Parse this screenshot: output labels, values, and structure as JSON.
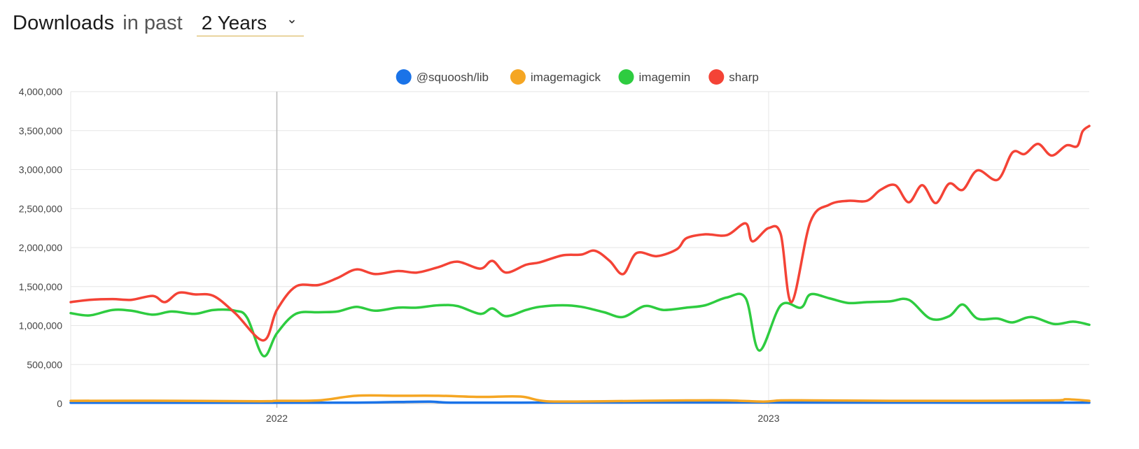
{
  "header": {
    "title": "Downloads",
    "subtitle": "in past",
    "range_value": "2 Years"
  },
  "chart_data": {
    "type": "line",
    "grid": true,
    "legend_position": "top",
    "xlim": [
      "2021-08-01",
      "2023-08-27"
    ],
    "ylim": [
      0,
      4000000
    ],
    "y_ticks": [
      0,
      500000,
      1000000,
      1500000,
      2000000,
      2500000,
      3000000,
      3500000,
      4000000
    ],
    "y_tick_labels": [
      "0",
      "500,000",
      "1,000,000",
      "1,500,000",
      "2,000,000",
      "2,500,000",
      "3,000,000",
      "3,500,000",
      "4,000,000"
    ],
    "x_ticks": [
      {
        "date": "2022-01-01",
        "label": "2022"
      },
      {
        "date": "2023-01-01",
        "label": "2023"
      }
    ],
    "highlight_date": "2022-01-01",
    "series": [
      {
        "name": "@squoosh/lib",
        "color": "#1a73e8",
        "points": [
          [
            "2021-08-01",
            10000
          ],
          [
            "2021-10-01",
            10000
          ],
          [
            "2022-01-01",
            10000
          ],
          [
            "2022-03-01",
            11000
          ],
          [
            "2022-04-01",
            20000
          ],
          [
            "2022-04-25",
            25000
          ],
          [
            "2022-05-10",
            12000
          ],
          [
            "2022-07-01",
            12000
          ],
          [
            "2022-10-01",
            14000
          ],
          [
            "2023-01-01",
            14000
          ],
          [
            "2023-04-01",
            13000
          ],
          [
            "2023-06-01",
            12000
          ],
          [
            "2023-08-27",
            12000
          ]
        ]
      },
      {
        "name": "imagemagick",
        "color": "#f5a623",
        "points": [
          [
            "2021-08-01",
            35000
          ],
          [
            "2021-10-01",
            36000
          ],
          [
            "2021-12-20",
            30000
          ],
          [
            "2022-01-01",
            35000
          ],
          [
            "2022-02-01",
            40000
          ],
          [
            "2022-03-01",
            100000
          ],
          [
            "2022-04-01",
            100000
          ],
          [
            "2022-05-01",
            100000
          ],
          [
            "2022-06-01",
            85000
          ],
          [
            "2022-07-01",
            90000
          ],
          [
            "2022-07-20",
            30000
          ],
          [
            "2022-09-01",
            30000
          ],
          [
            "2022-11-01",
            40000
          ],
          [
            "2022-12-01",
            40000
          ],
          [
            "2022-12-28",
            25000
          ],
          [
            "2023-01-10",
            40000
          ],
          [
            "2023-02-01",
            40000
          ],
          [
            "2023-04-01",
            35000
          ],
          [
            "2023-06-01",
            35000
          ],
          [
            "2023-08-01",
            40000
          ],
          [
            "2023-08-10",
            55000
          ],
          [
            "2023-08-27",
            35000
          ]
        ]
      },
      {
        "name": "imagemin",
        "color": "#2ecc40",
        "points": [
          [
            "2021-08-01",
            1160000
          ],
          [
            "2021-08-15",
            1130000
          ],
          [
            "2021-09-01",
            1200000
          ],
          [
            "2021-09-15",
            1190000
          ],
          [
            "2021-10-01",
            1140000
          ],
          [
            "2021-10-15",
            1180000
          ],
          [
            "2021-11-01",
            1150000
          ],
          [
            "2021-11-15",
            1200000
          ],
          [
            "2021-12-01",
            1190000
          ],
          [
            "2021-12-10",
            1100000
          ],
          [
            "2021-12-22",
            610000
          ],
          [
            "2022-01-01",
            900000
          ],
          [
            "2022-01-15",
            1150000
          ],
          [
            "2022-02-01",
            1170000
          ],
          [
            "2022-02-15",
            1180000
          ],
          [
            "2022-03-01",
            1240000
          ],
          [
            "2022-03-15",
            1190000
          ],
          [
            "2022-04-01",
            1230000
          ],
          [
            "2022-04-15",
            1230000
          ],
          [
            "2022-05-01",
            1260000
          ],
          [
            "2022-05-15",
            1250000
          ],
          [
            "2022-06-01",
            1150000
          ],
          [
            "2022-06-10",
            1220000
          ],
          [
            "2022-06-20",
            1120000
          ],
          [
            "2022-07-05",
            1200000
          ],
          [
            "2022-07-15",
            1240000
          ],
          [
            "2022-08-01",
            1260000
          ],
          [
            "2022-08-15",
            1240000
          ],
          [
            "2022-09-01",
            1170000
          ],
          [
            "2022-09-15",
            1110000
          ],
          [
            "2022-10-01",
            1250000
          ],
          [
            "2022-10-15",
            1200000
          ],
          [
            "2022-11-01",
            1230000
          ],
          [
            "2022-11-15",
            1260000
          ],
          [
            "2022-12-01",
            1360000
          ],
          [
            "2022-12-15",
            1350000
          ],
          [
            "2022-12-25",
            680000
          ],
          [
            "2023-01-10",
            1260000
          ],
          [
            "2023-01-25",
            1230000
          ],
          [
            "2023-02-01",
            1400000
          ],
          [
            "2023-02-15",
            1350000
          ],
          [
            "2023-03-01",
            1290000
          ],
          [
            "2023-03-15",
            1300000
          ],
          [
            "2023-04-01",
            1310000
          ],
          [
            "2023-04-15",
            1330000
          ],
          [
            "2023-05-01",
            1090000
          ],
          [
            "2023-05-15",
            1120000
          ],
          [
            "2023-05-25",
            1270000
          ],
          [
            "2023-06-05",
            1090000
          ],
          [
            "2023-06-20",
            1090000
          ],
          [
            "2023-07-01",
            1040000
          ],
          [
            "2023-07-15",
            1110000
          ],
          [
            "2023-08-01",
            1020000
          ],
          [
            "2023-08-15",
            1050000
          ],
          [
            "2023-08-27",
            1010000
          ]
        ]
      },
      {
        "name": "sharp",
        "color": "#f44336",
        "points": [
          [
            "2021-08-01",
            1300000
          ],
          [
            "2021-08-15",
            1330000
          ],
          [
            "2021-09-01",
            1340000
          ],
          [
            "2021-09-15",
            1330000
          ],
          [
            "2021-10-01",
            1380000
          ],
          [
            "2021-10-10",
            1300000
          ],
          [
            "2021-10-20",
            1420000
          ],
          [
            "2021-11-01",
            1400000
          ],
          [
            "2021-11-15",
            1380000
          ],
          [
            "2021-12-01",
            1160000
          ],
          [
            "2021-12-22",
            810000
          ],
          [
            "2022-01-01",
            1200000
          ],
          [
            "2022-01-15",
            1500000
          ],
          [
            "2022-02-01",
            1520000
          ],
          [
            "2022-02-15",
            1610000
          ],
          [
            "2022-03-01",
            1720000
          ],
          [
            "2022-03-15",
            1660000
          ],
          [
            "2022-04-01",
            1700000
          ],
          [
            "2022-04-15",
            1680000
          ],
          [
            "2022-05-01",
            1750000
          ],
          [
            "2022-05-15",
            1820000
          ],
          [
            "2022-06-01",
            1730000
          ],
          [
            "2022-06-10",
            1830000
          ],
          [
            "2022-06-20",
            1680000
          ],
          [
            "2022-07-05",
            1780000
          ],
          [
            "2022-07-15",
            1810000
          ],
          [
            "2022-08-01",
            1900000
          ],
          [
            "2022-08-15",
            1910000
          ],
          [
            "2022-08-25",
            1960000
          ],
          [
            "2022-09-05",
            1830000
          ],
          [
            "2022-09-15",
            1660000
          ],
          [
            "2022-09-25",
            1930000
          ],
          [
            "2022-10-10",
            1890000
          ],
          [
            "2022-10-25",
            1980000
          ],
          [
            "2022-11-01",
            2120000
          ],
          [
            "2022-11-15",
            2170000
          ],
          [
            "2022-12-01",
            2160000
          ],
          [
            "2022-12-15",
            2310000
          ],
          [
            "2022-12-20",
            2080000
          ],
          [
            "2023-01-01",
            2250000
          ],
          [
            "2023-01-10",
            2170000
          ],
          [
            "2023-01-18",
            1300000
          ],
          [
            "2023-02-01",
            2330000
          ],
          [
            "2023-02-15",
            2550000
          ],
          [
            "2023-03-01",
            2600000
          ],
          [
            "2023-03-15",
            2600000
          ],
          [
            "2023-03-25",
            2740000
          ],
          [
            "2023-04-05",
            2800000
          ],
          [
            "2023-04-15",
            2580000
          ],
          [
            "2023-04-25",
            2800000
          ],
          [
            "2023-05-05",
            2570000
          ],
          [
            "2023-05-15",
            2820000
          ],
          [
            "2023-05-25",
            2740000
          ],
          [
            "2023-06-05",
            2990000
          ],
          [
            "2023-06-20",
            2870000
          ],
          [
            "2023-07-01",
            3220000
          ],
          [
            "2023-07-10",
            3200000
          ],
          [
            "2023-07-20",
            3330000
          ],
          [
            "2023-07-30",
            3180000
          ],
          [
            "2023-08-10",
            3310000
          ],
          [
            "2023-08-18",
            3300000
          ],
          [
            "2023-08-22",
            3490000
          ],
          [
            "2023-08-27",
            3560000
          ]
        ]
      }
    ]
  }
}
